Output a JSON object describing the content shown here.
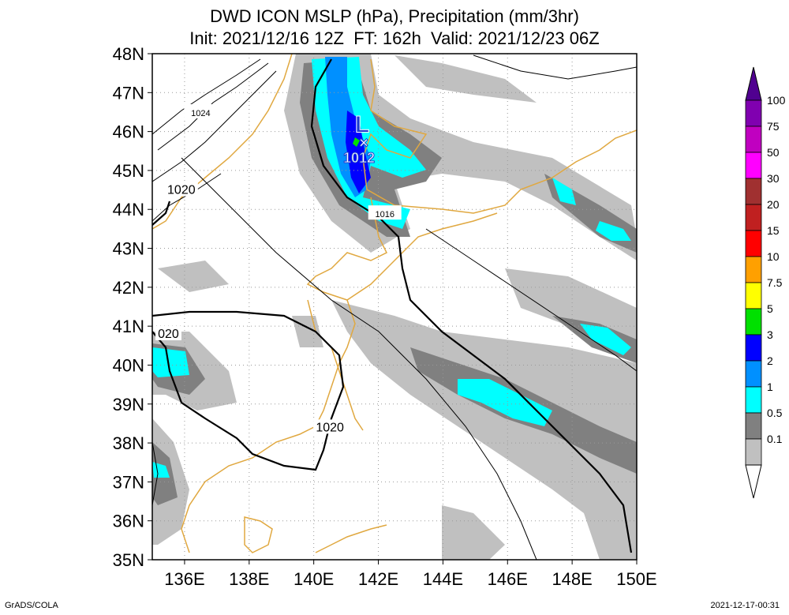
{
  "title": {
    "line1": "DWD ICON MSLP (hPa), Precipitation (mm/3hr)",
    "line2": "Init: 2021/12/16 12Z  FT: 162h  Valid: 2021/12/23 06Z"
  },
  "footer": {
    "software": "GrADS/COLA",
    "timestamp": "2021-12-17-00:31"
  },
  "chart_data": {
    "type": "map",
    "lon_range": [
      135,
      150
    ],
    "lat_range": [
      35,
      48
    ],
    "x_ticks": [
      {
        "lon": 136,
        "label": "136E"
      },
      {
        "lon": 138,
        "label": "138E"
      },
      {
        "lon": 140,
        "label": "140E"
      },
      {
        "lon": 142,
        "label": "142E"
      },
      {
        "lon": 144,
        "label": "144E"
      },
      {
        "lon": 146,
        "label": "146E"
      },
      {
        "lon": 148,
        "label": "148E"
      },
      {
        "lon": 150,
        "label": "150E"
      }
    ],
    "y_ticks": [
      {
        "lat": 35,
        "label": "35N"
      },
      {
        "lat": 36,
        "label": "36N"
      },
      {
        "lat": 37,
        "label": "37N"
      },
      {
        "lat": 38,
        "label": "38N"
      },
      {
        "lat": 39,
        "label": "39N"
      },
      {
        "lat": 40,
        "label": "40N"
      },
      {
        "lat": 41,
        "label": "41N"
      },
      {
        "lat": 42,
        "label": "42N"
      },
      {
        "lat": 43,
        "label": "43N"
      },
      {
        "lat": 44,
        "label": "44N"
      },
      {
        "lat": 45,
        "label": "45N"
      },
      {
        "lat": 46,
        "label": "46N"
      },
      {
        "lat": 47,
        "label": "47N"
      },
      {
        "lat": 48,
        "label": "48N"
      }
    ],
    "grid": true,
    "color_scale": [
      {
        "label": "0.1",
        "color": "#c0c0c0"
      },
      {
        "label": "0.5",
        "color": "#808080"
      },
      {
        "label": "1",
        "color": "#00ffff"
      },
      {
        "label": "2",
        "color": "#0090ff"
      },
      {
        "label": "3",
        "color": "#0000ff"
      },
      {
        "label": "5",
        "color": "#00e000"
      },
      {
        "label": "7.5",
        "color": "#ffff00"
      },
      {
        "label": "10",
        "color": "#ffa000"
      },
      {
        "label": "15",
        "color": "#ff0000"
      },
      {
        "label": "20",
        "color": "#c02020"
      },
      {
        "label": "30",
        "color": "#a03030"
      },
      {
        "label": "50",
        "color": "#ff00ff"
      },
      {
        "label": "75",
        "color": "#c000c0"
      },
      {
        "label": "100",
        "color": "#8000b0"
      }
    ],
    "colorbar_cap_color": "#500090",
    "pressure_contours": [
      {
        "label": "1024",
        "lon": 136.5,
        "lat": 46.5
      },
      {
        "label": "1020",
        "lon": 135.9,
        "lat": 44.5
      },
      {
        "label": "1016",
        "lon": 142.2,
        "lat": 43.9
      },
      {
        "label": "1020",
        "lon": 140.5,
        "lat": 38.4
      },
      {
        "label": "020",
        "lon": 135.5,
        "lat": 40.8
      },
      {
        "label": "1012",
        "lon": 141.4,
        "lat": 45.3
      }
    ],
    "low_center": {
      "symbol": "L",
      "value": "1012",
      "lon": 141.5,
      "lat": 45.9
    }
  }
}
